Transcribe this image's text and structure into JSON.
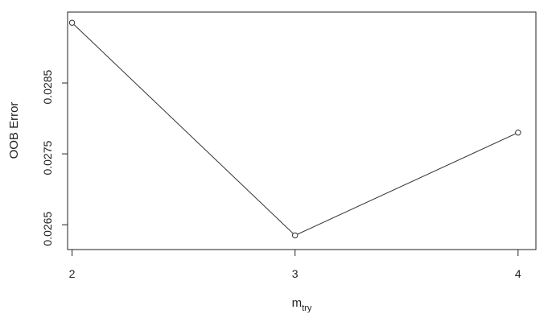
{
  "chart_data": {
    "type": "line",
    "x": [
      2,
      3,
      4
    ],
    "y": [
      0.02935,
      0.02635,
      0.0278
    ],
    "x_ticks": [
      2,
      3,
      4
    ],
    "x_tick_labels": [
      "2",
      "3",
      "4"
    ],
    "y_ticks": [
      0.0265,
      0.0275,
      0.0285
    ],
    "y_tick_labels": [
      "0.0265",
      "0.0275",
      "0.0285"
    ],
    "xlabel_main": "m",
    "xlabel_sub": "try",
    "ylabel": "OOB Error",
    "xlim": [
      1.98,
      4.08
    ],
    "ylim": [
      0.02615,
      0.0295
    ],
    "grid": false,
    "line_color": "#333333",
    "axis_color": "#222222",
    "point_style": "open-circle"
  }
}
